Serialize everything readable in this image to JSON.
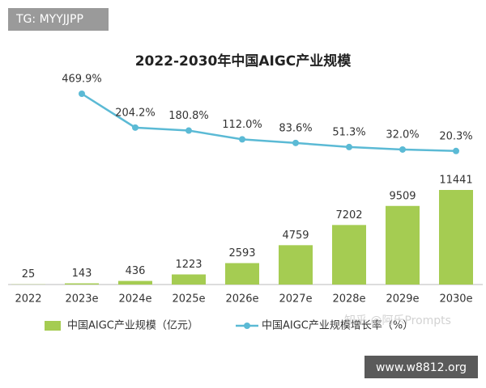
{
  "chart_data": {
    "type": "bar",
    "title": "2022-2030年中国AIGC产业规模",
    "categories": [
      "2022",
      "2023e",
      "2024e",
      "2025e",
      "2026e",
      "2027e",
      "2028e",
      "2029e",
      "2030e"
    ],
    "series": [
      {
        "name": "中国AIGC产业规模（亿元）",
        "type": "bar",
        "color": "#a5cc52",
        "values": [
          25,
          143,
          436,
          1223,
          2593,
          4759,
          7202,
          9509,
          11441
        ]
      },
      {
        "name": "中国AIGC产业规模增长率（%）",
        "type": "line",
        "axis": "y2",
        "color": "#5bbad5",
        "values": [
          null,
          469.9,
          204.2,
          180.8,
          112.0,
          83.6,
          51.3,
          32.0,
          20.3
        ],
        "value_labels": [
          null,
          "469.9%",
          "204.2%",
          "180.8%",
          "112.0%",
          "83.6%",
          "51.3%",
          "32.0%",
          "20.3%"
        ]
      }
    ],
    "legend": "bottom"
  },
  "watermarks": [
    "TG: MYYJJPP",
    "知乎 @阿乐Prompts",
    "www.w8812.org"
  ]
}
